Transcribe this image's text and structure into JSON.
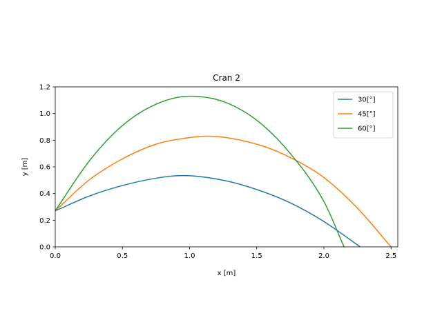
{
  "chart_data": {
    "type": "line",
    "title": "Cran 2",
    "xlabel": "x [m]",
    "ylabel": "y [m]",
    "xlim": [
      0.0,
      2.55
    ],
    "ylim": [
      0.0,
      1.2
    ],
    "xticks": [
      0.0,
      0.5,
      1.0,
      1.5,
      2.0,
      2.5
    ],
    "xtick_labels": [
      "0.0",
      "0.5",
      "1.0",
      "1.5",
      "2.0",
      "2.5"
    ],
    "yticks": [
      0.0,
      0.2,
      0.4,
      0.6,
      0.8,
      1.0,
      1.2
    ],
    "ytick_labels": [
      "0.0",
      "0.2",
      "0.4",
      "0.6",
      "0.8",
      "1.0",
      "1.2"
    ],
    "grid": false,
    "legend_position": "top-right",
    "series": [
      {
        "name": "30[°]",
        "color": "#1f77b4",
        "x": [
          0.0,
          0.25,
          0.5,
          0.75,
          0.95,
          1.25,
          1.5,
          1.75,
          2.0,
          2.27
        ],
        "y": [
          0.27,
          0.38,
          0.46,
          0.515,
          0.535,
          0.5,
          0.43,
          0.33,
          0.19,
          0.0
        ]
      },
      {
        "name": "45[°]",
        "color": "#ff7f0e",
        "x": [
          0.0,
          0.25,
          0.5,
          0.75,
          1.0,
          1.14,
          1.5,
          1.75,
          2.0,
          2.25,
          2.5
        ],
        "y": [
          0.27,
          0.5,
          0.66,
          0.77,
          0.82,
          0.83,
          0.77,
          0.67,
          0.52,
          0.29,
          0.0
        ]
      },
      {
        "name": "60[°]",
        "color": "#2ca02c",
        "x": [
          0.0,
          0.25,
          0.5,
          0.75,
          1.0,
          1.25,
          1.5,
          1.75,
          2.0,
          2.15
        ],
        "y": [
          0.27,
          0.64,
          0.91,
          1.07,
          1.13,
          1.09,
          0.95,
          0.7,
          0.34,
          0.0
        ]
      }
    ]
  }
}
